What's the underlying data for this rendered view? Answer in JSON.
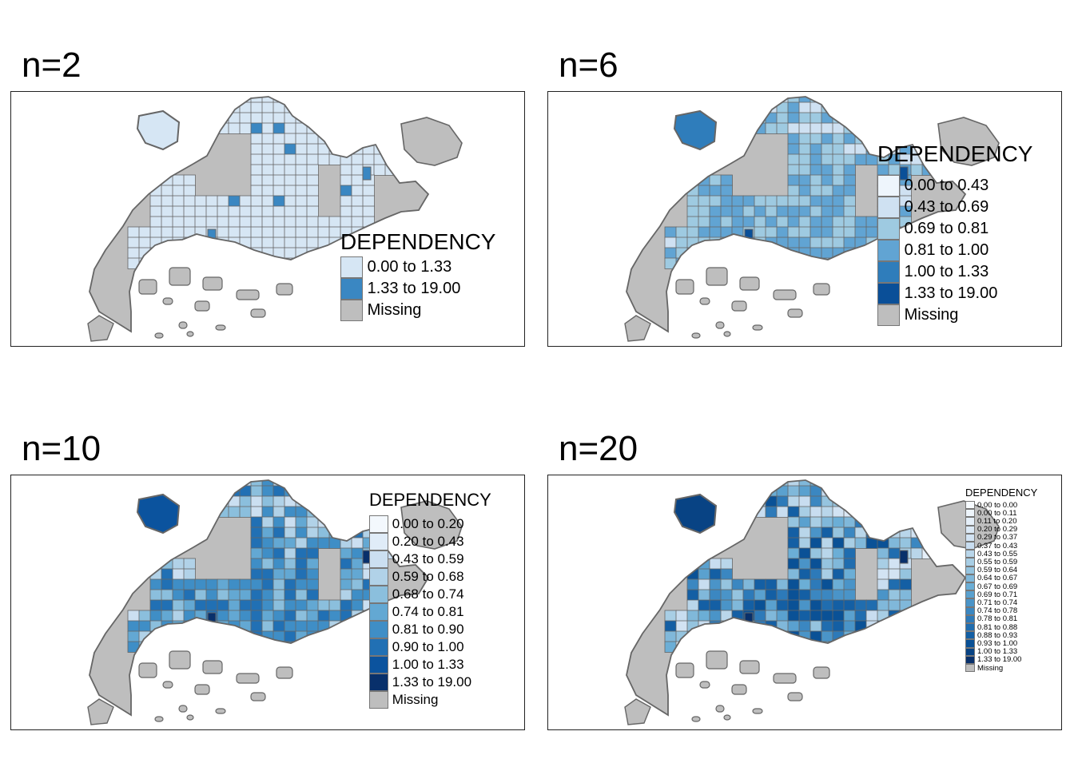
{
  "colors": {
    "missing": "#bebebe",
    "border": "#666666"
  },
  "panels": [
    {
      "title": "n=2",
      "legend_title": "DEPENDENCY",
      "items": [
        {
          "label": "0.00 to 1.33",
          "color": "#d6e6f4"
        },
        {
          "label": "1.33 to 19.00",
          "color": "#3a87c2"
        },
        {
          "label": "Missing",
          "color": "#bebebe"
        }
      ]
    },
    {
      "title": "n=6",
      "legend_title": "DEPENDENCY",
      "items": [
        {
          "label": "0.00 to 0.43",
          "color": "#eef5fc"
        },
        {
          "label": "0.43 to 0.69",
          "color": "#cfe1f2"
        },
        {
          "label": "0.69 to 0.81",
          "color": "#9ecae1"
        },
        {
          "label": "0.81 to 1.00",
          "color": "#61a4d3"
        },
        {
          "label": "1.00 to 1.33",
          "color": "#2f7dbb"
        },
        {
          "label": "1.33 to 19.00",
          "color": "#0a4f98"
        },
        {
          "label": "Missing",
          "color": "#bebebe"
        }
      ]
    },
    {
      "title": "n=10",
      "legend_title": "DEPENDENCY",
      "items": [
        {
          "label": "0.00 to 0.20",
          "color": "#f3f8fd"
        },
        {
          "label": "0.20 to 0.43",
          "color": "#e0ecf8"
        },
        {
          "label": "0.43 to 0.59",
          "color": "#cbdff1"
        },
        {
          "label": "0.59 to 0.68",
          "color": "#b1d2e8"
        },
        {
          "label": "0.68 to 0.74",
          "color": "#8bbfdd"
        },
        {
          "label": "0.74 to 0.81",
          "color": "#63a8d3"
        },
        {
          "label": "0.81 to 0.90",
          "color": "#3f8ec6"
        },
        {
          "label": "0.90 to 1.00",
          "color": "#2170b4"
        },
        {
          "label": "1.00 to 1.33",
          "color": "#0b539e"
        },
        {
          "label": "1.33 to 19.00",
          "color": "#08306b"
        },
        {
          "label": "Missing",
          "color": "#bebebe"
        }
      ]
    },
    {
      "title": "n=20",
      "legend_title": "DEPENDENCY",
      "items": [
        {
          "label": "0.00 to 0.00",
          "color": "#f7fbff"
        },
        {
          "label": "0.00 to 0.11",
          "color": "#eef5fc"
        },
        {
          "label": "0.11 to 0.20",
          "color": "#e5eff9"
        },
        {
          "label": "0.20 to 0.29",
          "color": "#dbe9f6"
        },
        {
          "label": "0.29 to 0.37",
          "color": "#d2e3f3"
        },
        {
          "label": "0.37 to 0.43",
          "color": "#c8ddf0"
        },
        {
          "label": "0.43 to 0.55",
          "color": "#b9d6ea"
        },
        {
          "label": "0.55 to 0.59",
          "color": "#a8cee5"
        },
        {
          "label": "0.59 to 0.64",
          "color": "#95c4df"
        },
        {
          "label": "0.64 to 0.67",
          "color": "#80b8da"
        },
        {
          "label": "0.67 to 0.69",
          "color": "#6baed6"
        },
        {
          "label": "0.69 to 0.71",
          "color": "#5aa1cf"
        },
        {
          "label": "0.71 to 0.74",
          "color": "#4a94c8"
        },
        {
          "label": "0.74 to 0.78",
          "color": "#3b87c1"
        },
        {
          "label": "0.78 to 0.81",
          "color": "#2d7ab9"
        },
        {
          "label": "0.81 to 0.88",
          "color": "#206daf"
        },
        {
          "label": "0.88 to 0.93",
          "color": "#145fa4"
        },
        {
          "label": "0.93 to 1.00",
          "color": "#0a5196"
        },
        {
          "label": "1.00 to 1.33",
          "color": "#084384"
        },
        {
          "label": "1.33 to 19.00",
          "color": "#08306b"
        },
        {
          "label": "Missing",
          "color": "#bebebe"
        }
      ]
    }
  ]
}
